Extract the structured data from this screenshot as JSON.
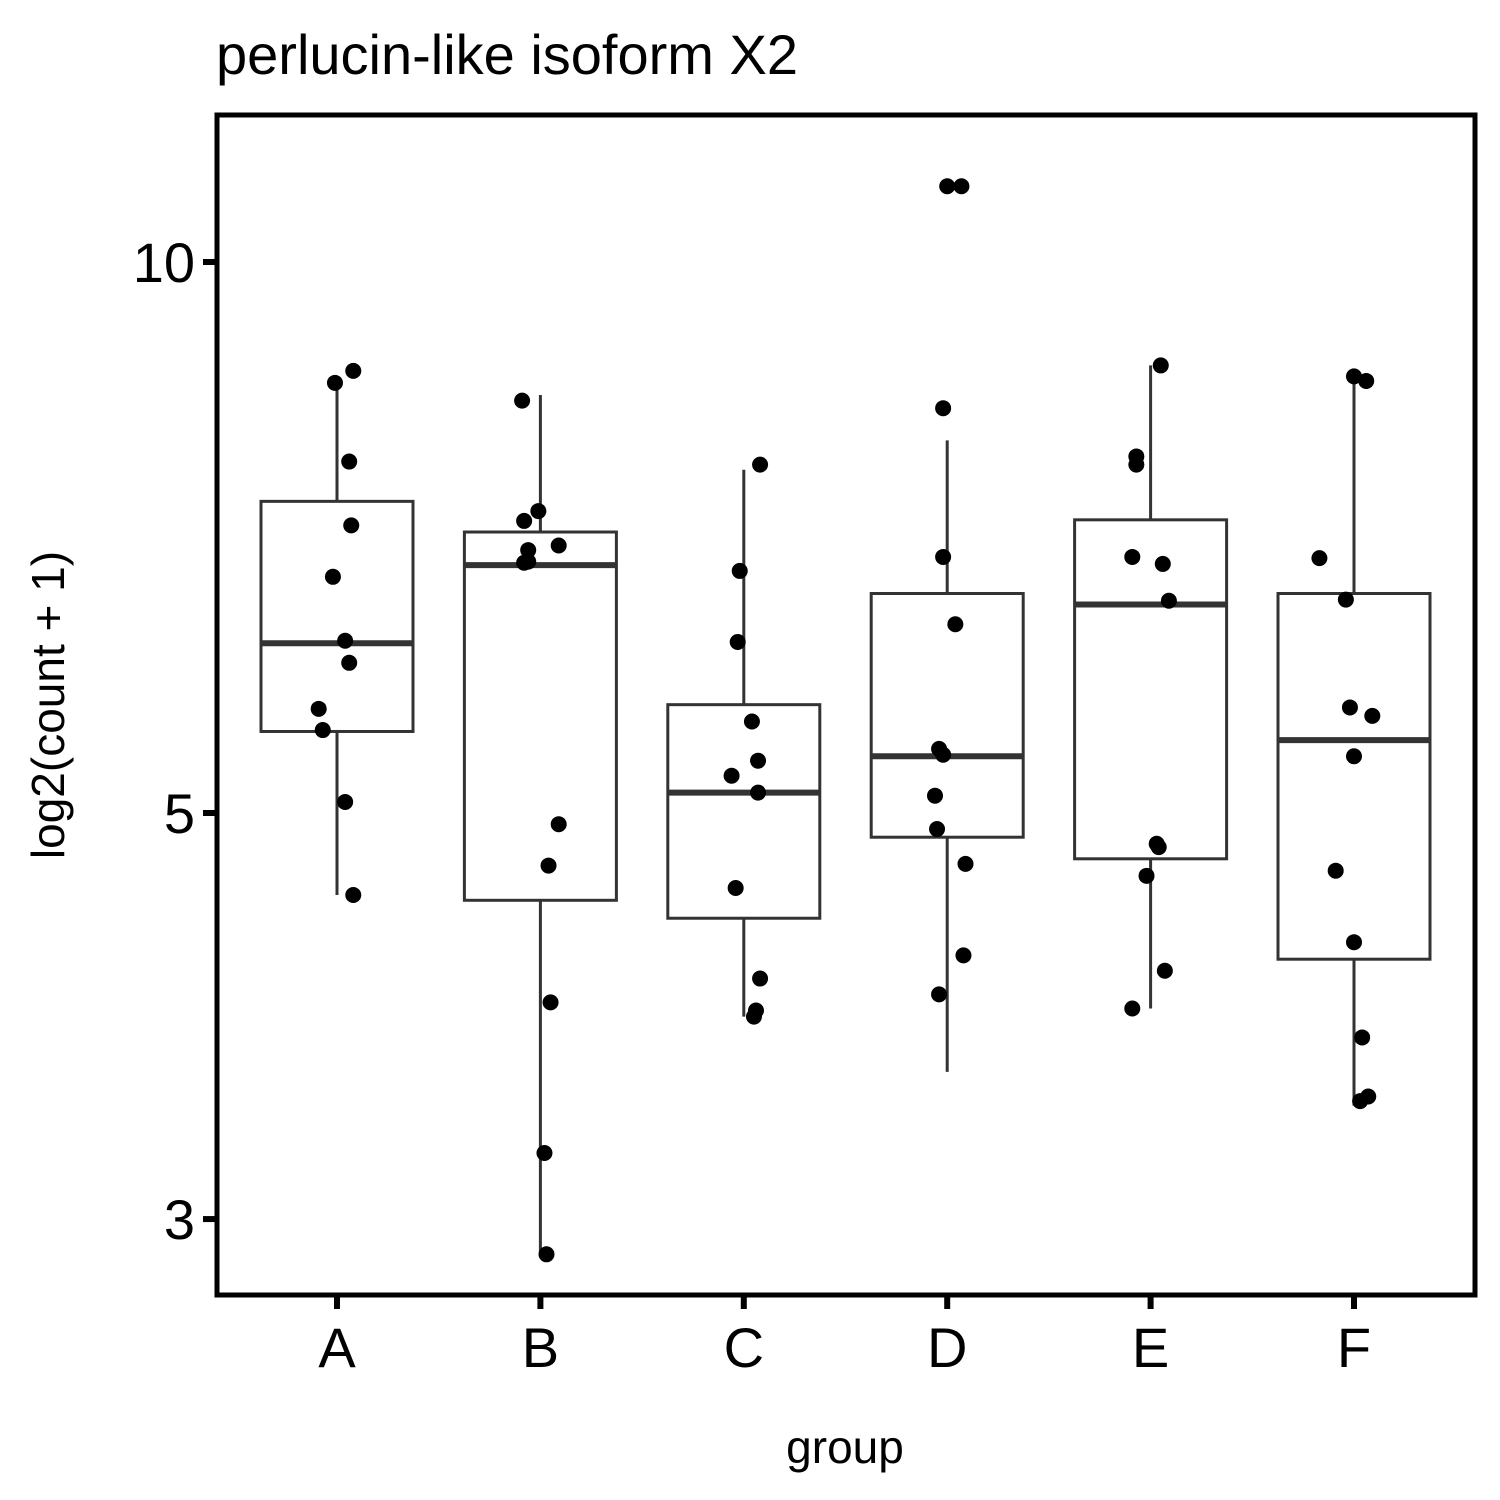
{
  "chart_data": {
    "type": "boxplot",
    "title": "perlucin-like isoform X2",
    "xlabel": "group",
    "ylabel": "log2(count + 1)",
    "y_scale": "log",
    "ylim": [
      2.75,
      11.6
    ],
    "yticks": [
      3,
      5,
      10
    ],
    "ytick_labels": [
      "3",
      "5",
      "10"
    ],
    "grid": false,
    "legend": "none",
    "colors": {
      "box_line": "#333333",
      "point": "#000000",
      "panel_border": "#000000"
    },
    "categories": [
      "A",
      "B",
      "C",
      "D",
      "E",
      "F"
    ],
    "boxes": [
      {
        "group": "A",
        "whisker_low": 4.51,
        "q1": 5.54,
        "median": 6.19,
        "q3": 7.4,
        "whisker_high": 8.59
      },
      {
        "group": "B",
        "whisker_low": 2.87,
        "q1": 4.48,
        "median": 6.83,
        "q3": 7.12,
        "whisker_high": 8.46
      },
      {
        "group": "C",
        "whisker_low": 3.87,
        "q1": 4.38,
        "median": 5.13,
        "q3": 5.73,
        "whisker_high": 7.7
      },
      {
        "group": "D",
        "whisker_low": 3.61,
        "q1": 4.85,
        "median": 5.37,
        "q3": 6.59,
        "whisker_high": 7.99
      },
      {
        "group": "E",
        "whisker_low": 3.91,
        "q1": 4.72,
        "median": 6.5,
        "q3": 7.23,
        "whisker_high": 8.78
      },
      {
        "group": "F",
        "whisker_low": 3.46,
        "q1": 4.16,
        "median": 5.48,
        "q3": 6.59,
        "whisker_high": 8.65
      }
    ],
    "points": [
      {
        "group": "A",
        "jitter": -0.01,
        "y": 8.59
      },
      {
        "group": "A",
        "jitter": 0.08,
        "y": 8.72
      },
      {
        "group": "A",
        "jitter": 0.06,
        "y": 7.78
      },
      {
        "group": "A",
        "jitter": 0.07,
        "y": 7.18
      },
      {
        "group": "A",
        "jitter": -0.02,
        "y": 6.73
      },
      {
        "group": "A",
        "jitter": 0.04,
        "y": 6.21
      },
      {
        "group": "A",
        "jitter": 0.06,
        "y": 6.04
      },
      {
        "group": "A",
        "jitter": -0.09,
        "y": 5.7
      },
      {
        "group": "A",
        "jitter": -0.07,
        "y": 5.55
      },
      {
        "group": "A",
        "jitter": 0.04,
        "y": 5.07
      },
      {
        "group": "A",
        "jitter": 0.08,
        "y": 4.51
      },
      {
        "group": "B",
        "jitter": -0.09,
        "y": 8.4
      },
      {
        "group": "B",
        "jitter": -0.01,
        "y": 7.31
      },
      {
        "group": "B",
        "jitter": -0.08,
        "y": 7.22
      },
      {
        "group": "B",
        "jitter": 0.09,
        "y": 7.0
      },
      {
        "group": "B",
        "jitter": -0.06,
        "y": 6.96
      },
      {
        "group": "B",
        "jitter": -0.08,
        "y": 6.85
      },
      {
        "group": "B",
        "jitter": -0.06,
        "y": 6.86
      },
      {
        "group": "B",
        "jitter": 0.09,
        "y": 4.93
      },
      {
        "group": "B",
        "jitter": 0.04,
        "y": 4.68
      },
      {
        "group": "B",
        "jitter": 0.05,
        "y": 3.94
      },
      {
        "group": "B",
        "jitter": 0.02,
        "y": 3.26
      },
      {
        "group": "B",
        "jitter": 0.03,
        "y": 2.87
      },
      {
        "group": "C",
        "jitter": 0.08,
        "y": 7.75
      },
      {
        "group": "C",
        "jitter": -0.02,
        "y": 6.78
      },
      {
        "group": "C",
        "jitter": -0.03,
        "y": 6.2
      },
      {
        "group": "C",
        "jitter": 0.04,
        "y": 5.61
      },
      {
        "group": "C",
        "jitter": 0.07,
        "y": 5.34
      },
      {
        "group": "C",
        "jitter": -0.06,
        "y": 5.24
      },
      {
        "group": "C",
        "jitter": 0.07,
        "y": 5.13
      },
      {
        "group": "C",
        "jitter": -0.04,
        "y": 4.55
      },
      {
        "group": "C",
        "jitter": 0.08,
        "y": 4.06
      },
      {
        "group": "C",
        "jitter": 0.06,
        "y": 3.9
      },
      {
        "group": "C",
        "jitter": 0.05,
        "y": 3.87
      },
      {
        "group": "D",
        "jitter": 0.0,
        "y": 11.0
      },
      {
        "group": "D",
        "jitter": 0.07,
        "y": 11.0
      },
      {
        "group": "D",
        "jitter": -0.02,
        "y": 8.32
      },
      {
        "group": "D",
        "jitter": -0.02,
        "y": 6.9
      },
      {
        "group": "D",
        "jitter": 0.04,
        "y": 6.34
      },
      {
        "group": "D",
        "jitter": -0.04,
        "y": 5.42
      },
      {
        "group": "D",
        "jitter": -0.02,
        "y": 5.38
      },
      {
        "group": "D",
        "jitter": -0.06,
        "y": 5.11
      },
      {
        "group": "D",
        "jitter": -0.05,
        "y": 4.9
      },
      {
        "group": "D",
        "jitter": 0.09,
        "y": 4.69
      },
      {
        "group": "D",
        "jitter": 0.08,
        "y": 4.18
      },
      {
        "group": "D",
        "jitter": -0.04,
        "y": 3.98
      },
      {
        "group": "E",
        "jitter": 0.05,
        "y": 8.78
      },
      {
        "group": "E",
        "jitter": -0.07,
        "y": 7.83
      },
      {
        "group": "E",
        "jitter": -0.07,
        "y": 7.75
      },
      {
        "group": "E",
        "jitter": -0.09,
        "y": 6.9
      },
      {
        "group": "E",
        "jitter": 0.06,
        "y": 6.84
      },
      {
        "group": "E",
        "jitter": 0.09,
        "y": 6.53
      },
      {
        "group": "E",
        "jitter": 0.03,
        "y": 4.81
      },
      {
        "group": "E",
        "jitter": 0.04,
        "y": 4.79
      },
      {
        "group": "E",
        "jitter": -0.02,
        "y": 4.62
      },
      {
        "group": "E",
        "jitter": 0.07,
        "y": 4.1
      },
      {
        "group": "E",
        "jitter": -0.09,
        "y": 3.91
      },
      {
        "group": "F",
        "jitter": 0.0,
        "y": 8.66
      },
      {
        "group": "F",
        "jitter": 0.06,
        "y": 8.61
      },
      {
        "group": "F",
        "jitter": -0.17,
        "y": 6.89
      },
      {
        "group": "F",
        "jitter": -0.04,
        "y": 6.54
      },
      {
        "group": "F",
        "jitter": -0.02,
        "y": 5.71
      },
      {
        "group": "F",
        "jitter": 0.09,
        "y": 5.65
      },
      {
        "group": "F",
        "jitter": 0.0,
        "y": 5.37
      },
      {
        "group": "F",
        "jitter": -0.09,
        "y": 4.65
      },
      {
        "group": "F",
        "jitter": 0.0,
        "y": 4.25
      },
      {
        "group": "F",
        "jitter": 0.04,
        "y": 3.77
      },
      {
        "group": "F",
        "jitter": 0.07,
        "y": 3.5
      },
      {
        "group": "F",
        "jitter": 0.03,
        "y": 3.48
      }
    ]
  }
}
